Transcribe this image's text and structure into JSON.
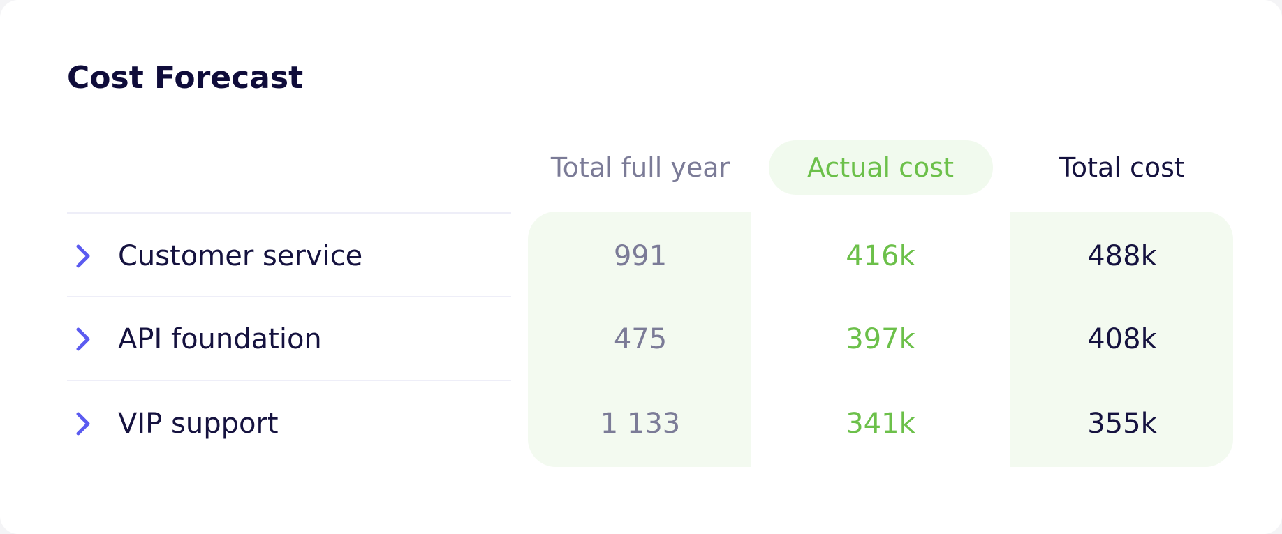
{
  "header": {
    "title": "Cost Forecast"
  },
  "table": {
    "columns": [
      "Total full year",
      "Actual cost",
      "Total cost"
    ],
    "rows": [
      [
        "Customer service",
        "991",
        "416k",
        "488k"
      ],
      [
        "API foundation",
        "475",
        "397k",
        "408k"
      ],
      [
        "VIP support",
        "1 133",
        "341k",
        "355k"
      ]
    ]
  }
}
